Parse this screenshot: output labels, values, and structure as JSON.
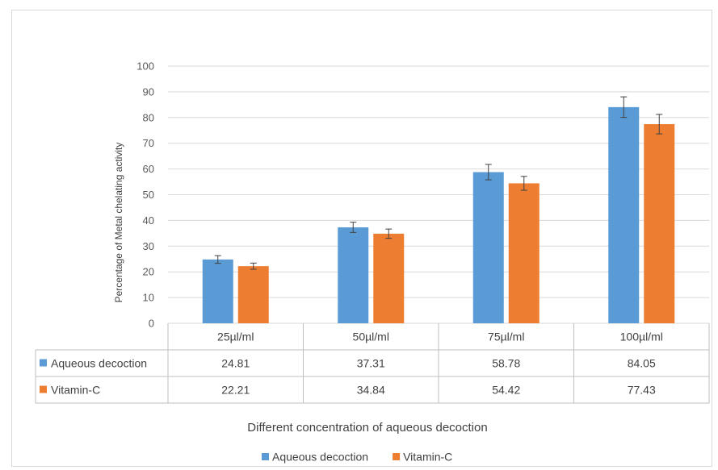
{
  "chart_data": {
    "type": "bar",
    "title": "",
    "xlabel": "Different concentration of aqueous decoction",
    "ylabel": "Percentage of Metal chelating activity",
    "ylim": [
      0,
      100
    ],
    "yticks": [
      0,
      10,
      20,
      30,
      40,
      50,
      60,
      70,
      80,
      90,
      100
    ],
    "grid": true,
    "legend_position": "bottom",
    "categories": [
      "25µl/ml",
      "50µl/ml",
      "75µl/ml",
      "100µl/ml"
    ],
    "series": [
      {
        "name": "Aqueous decoction",
        "color": "#5b9bd5",
        "values": [
          24.81,
          37.31,
          58.78,
          84.05
        ],
        "error": [
          1.5,
          2.0,
          3.0,
          4.0
        ]
      },
      {
        "name": "Vitamin-C",
        "color": "#ed7d31",
        "values": [
          22.21,
          34.84,
          54.42,
          77.43
        ],
        "error": [
          1.2,
          1.8,
          2.7,
          3.8
        ]
      }
    ],
    "data_table": {
      "rows": [
        {
          "label": "Aqueous decoction",
          "cells": [
            "24.81",
            "37.31",
            "58.78",
            "84.05"
          ]
        },
        {
          "label": "Vitamin-C",
          "cells": [
            "22.21",
            "34.84",
            "54.42",
            "77.43"
          ]
        }
      ]
    }
  }
}
